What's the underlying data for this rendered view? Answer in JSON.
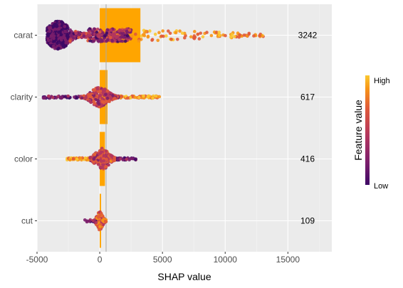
{
  "chart_data": {
    "type": "bar",
    "subtype": "shap-summary (mean |SHAP| bars with beeswarm overlay)",
    "categories": [
      "carat",
      "clarity",
      "color",
      "cut"
    ],
    "values": [
      3242,
      617,
      416,
      109
    ],
    "value_labels": [
      "3242",
      "617",
      "416",
      "109"
    ],
    "xlabel": "SHAP value",
    "ylabel": "",
    "xlim": [
      -5000,
      18500
    ],
    "x_ticks": [
      -5000,
      0,
      5000,
      10000,
      15000
    ],
    "x_tick_labels": [
      "-5000",
      "0",
      "5000",
      "10000",
      "15000"
    ],
    "grid": true,
    "bar_color": "#FFA500",
    "panel_background": "#EBEBEB",
    "swarm_ranges": [
      {
        "feature": "carat",
        "min": -4700,
        "max": 13400
      },
      {
        "feature": "clarity",
        "min": -4500,
        "max": 4800
      },
      {
        "feature": "color",
        "min": -2600,
        "max": 2900
      },
      {
        "feature": "cut",
        "min": -1200,
        "max": 500
      }
    ],
    "legend": {
      "title": "Feature value",
      "high_label": "High",
      "low_label": "Low",
      "position": "right",
      "colors": [
        "#3D0965",
        "#7A1E6C",
        "#B3365E",
        "#E05A3A",
        "#F79517",
        "#FBC830"
      ]
    }
  }
}
